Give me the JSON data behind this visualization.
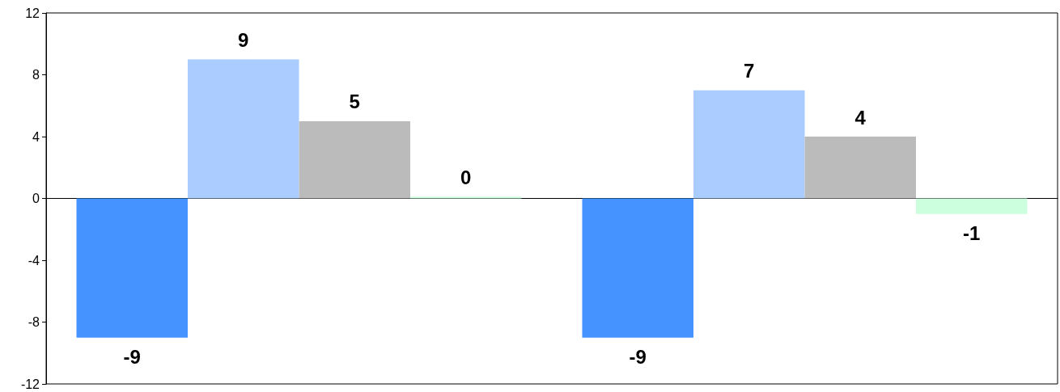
{
  "chart_data": {
    "type": "bar",
    "categories": [
      null,
      null
    ],
    "series": [
      {
        "color": "#4593ff",
        "values": [
          -9,
          -9
        ]
      },
      {
        "color": "#aaccff",
        "values": [
          9,
          7
        ]
      },
      {
        "color": "#bbbbbb",
        "values": [
          5,
          4
        ]
      },
      {
        "color": "#ccffdd",
        "values": [
          0,
          -1
        ]
      }
    ],
    "ylim": [
      -12,
      12
    ],
    "yticks": [
      -12,
      -8,
      -4,
      0,
      4,
      8,
      12
    ],
    "data_labels": true
  }
}
